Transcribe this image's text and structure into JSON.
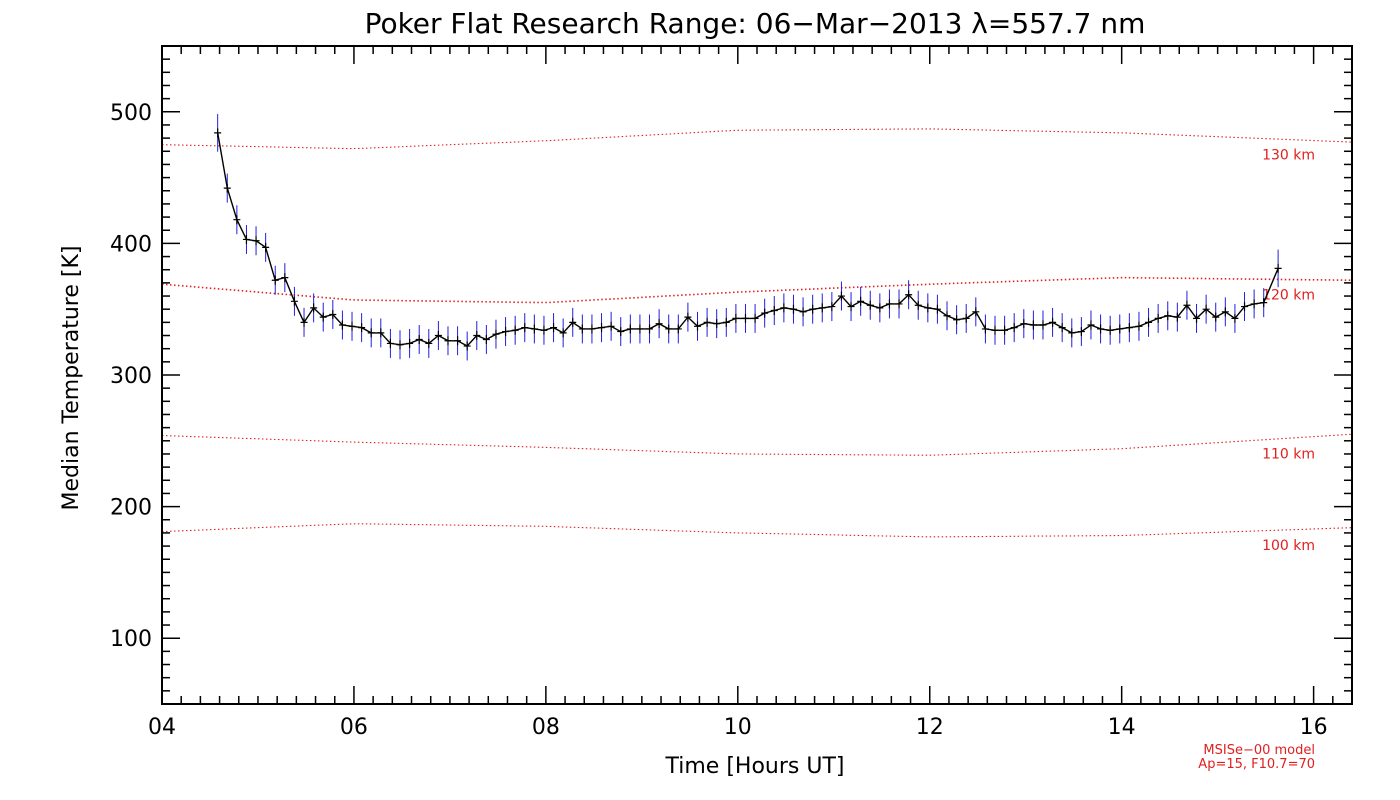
{
  "chart_data": {
    "type": "line",
    "title": "Poker Flat Research Range: 06−Mar−2013 λ=557.7 nm",
    "xlabel": "Time [Hours UT]",
    "ylabel": "Median Temperature [K]",
    "xlim": [
      4,
      16.4
    ],
    "ylim": [
      50,
      550
    ],
    "xticks": [
      {
        "value": 4,
        "label": "04"
      },
      {
        "value": 6,
        "label": "06"
      },
      {
        "value": 8,
        "label": "08"
      },
      {
        "value": 10,
        "label": "10"
      },
      {
        "value": 12,
        "label": "12"
      },
      {
        "value": 14,
        "label": "14"
      },
      {
        "value": 16,
        "label": "16"
      }
    ],
    "yticks": [
      {
        "value": 100,
        "label": "100"
      },
      {
        "value": 200,
        "label": "200"
      },
      {
        "value": 300,
        "label": "300"
      },
      {
        "value": 400,
        "label": "400"
      },
      {
        "value": 500,
        "label": "500"
      }
    ],
    "colors": {
      "data_line": "#000000",
      "error_bars": "#2020e0",
      "model": "#e02020"
    },
    "measured": {
      "name": "Median temperature",
      "x": [
        4.58,
        4.68,
        4.78,
        4.88,
        4.98,
        5.08,
        5.18,
        5.28,
        5.38,
        5.48,
        5.58,
        5.68,
        5.78,
        5.88,
        5.98,
        6.08,
        6.18,
        6.28,
        6.38,
        6.48,
        6.58,
        6.68,
        6.78,
        6.88,
        6.98,
        7.08,
        7.18,
        7.28,
        7.38,
        7.48,
        7.58,
        7.68,
        7.78,
        7.88,
        7.98,
        8.08,
        8.18,
        8.28,
        8.38,
        8.48,
        8.58,
        8.68,
        8.78,
        8.88,
        8.98,
        9.08,
        9.18,
        9.28,
        9.38,
        9.48,
        9.58,
        9.68,
        9.78,
        9.88,
        9.98,
        10.08,
        10.18,
        10.28,
        10.38,
        10.48,
        10.58,
        10.68,
        10.78,
        10.88,
        10.98,
        11.08,
        11.18,
        11.28,
        11.38,
        11.48,
        11.58,
        11.68,
        11.78,
        11.88,
        11.98,
        12.08,
        12.18,
        12.28,
        12.38,
        12.48,
        12.58,
        12.68,
        12.78,
        12.88,
        12.98,
        13.08,
        13.18,
        13.28,
        13.38,
        13.48,
        13.58,
        13.68,
        13.78,
        13.88,
        13.98,
        14.08,
        14.18,
        14.28,
        14.38,
        14.48,
        14.58,
        14.68,
        14.78,
        14.88,
        14.98,
        15.08,
        15.18,
        15.28,
        15.38,
        15.48,
        15.63
      ],
      "y": [
        484,
        442,
        418,
        403,
        402,
        397,
        372,
        374,
        356,
        340,
        351,
        344,
        346,
        338,
        337,
        336,
        332,
        332,
        324,
        323,
        324,
        327,
        324,
        330,
        326,
        326,
        322,
        330,
        327,
        331,
        333,
        334,
        336,
        335,
        334,
        336,
        332,
        340,
        335,
        335,
        336,
        337,
        333,
        335,
        335,
        335,
        339,
        335,
        335,
        344,
        337,
        340,
        339,
        340,
        343,
        343,
        343,
        347,
        349,
        351,
        350,
        348,
        350,
        351,
        352,
        360,
        352,
        356,
        353,
        351,
        354,
        354,
        361,
        353,
        351,
        350,
        345,
        342,
        343,
        348,
        335,
        334,
        334,
        336,
        339,
        338,
        338,
        340,
        336,
        332,
        333,
        338,
        335,
        334,
        335,
        336,
        337,
        340,
        343,
        345,
        344,
        353,
        343,
        350,
        344,
        348,
        343,
        352,
        354,
        355,
        381
      ],
      "error": 11
    },
    "model": {
      "name": "MSISe-00 model",
      "x": [
        4,
        6,
        8,
        10,
        12,
        14,
        16.4
      ],
      "lines": [
        {
          "label": "130 km",
          "y": [
            475,
            472,
            478,
            486,
            487,
            484,
            477
          ]
        },
        {
          "label": "120 km",
          "y": [
            369,
            357,
            355,
            363,
            369,
            374,
            372
          ]
        },
        {
          "label": "110 km",
          "y": [
            254,
            249,
            245,
            240,
            239,
            244,
            255
          ]
        },
        {
          "label": "100 km",
          "y": [
            181,
            187,
            185,
            180,
            177,
            178,
            184
          ]
        }
      ]
    },
    "model_note": [
      "MSISe−00 model",
      "Ap=15, F10.7=70"
    ]
  }
}
